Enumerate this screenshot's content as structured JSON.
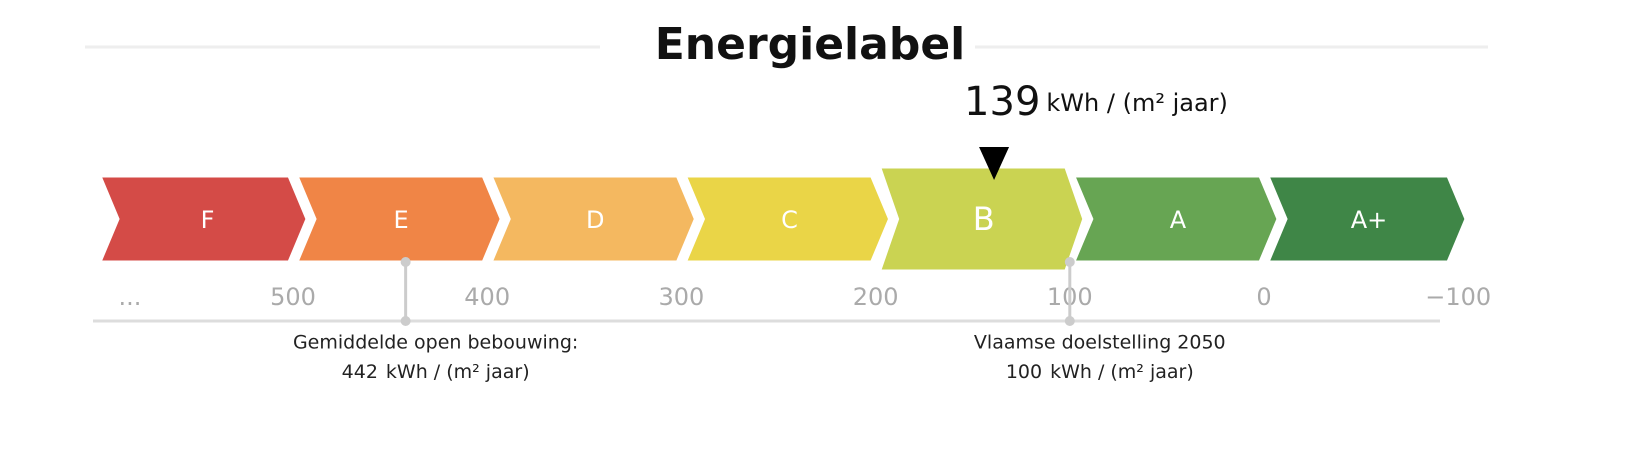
{
  "title": "Energielabel",
  "score": {
    "value": 139,
    "unit": "kWh / (m² jaar)"
  },
  "scale": {
    "overflow_label": "...",
    "ticks": [
      500,
      400,
      300,
      200,
      100,
      0,
      {
        "value": -100,
        "label": "−100"
      }
    ]
  },
  "classes": [
    {
      "label": "F",
      "color": "#d44b47"
    },
    {
      "label": "E",
      "color": "#f08546"
    },
    {
      "label": "D",
      "color": "#f4b860"
    },
    {
      "label": "C",
      "color": "#ead547"
    },
    {
      "label": "B",
      "color": "#cad352"
    },
    {
      "label": "A",
      "color": "#67a553"
    },
    {
      "label": "A+",
      "color": "#3f8647"
    }
  ],
  "markers": [
    {
      "value": 442,
      "label": "Gemiddelde open bebouwing:",
      "unit": "kWh / (m² jaar)"
    },
    {
      "value": 100,
      "label": "Vlaamse doelstelling 2050",
      "unit": "kWh / (m² jaar)"
    }
  ]
}
